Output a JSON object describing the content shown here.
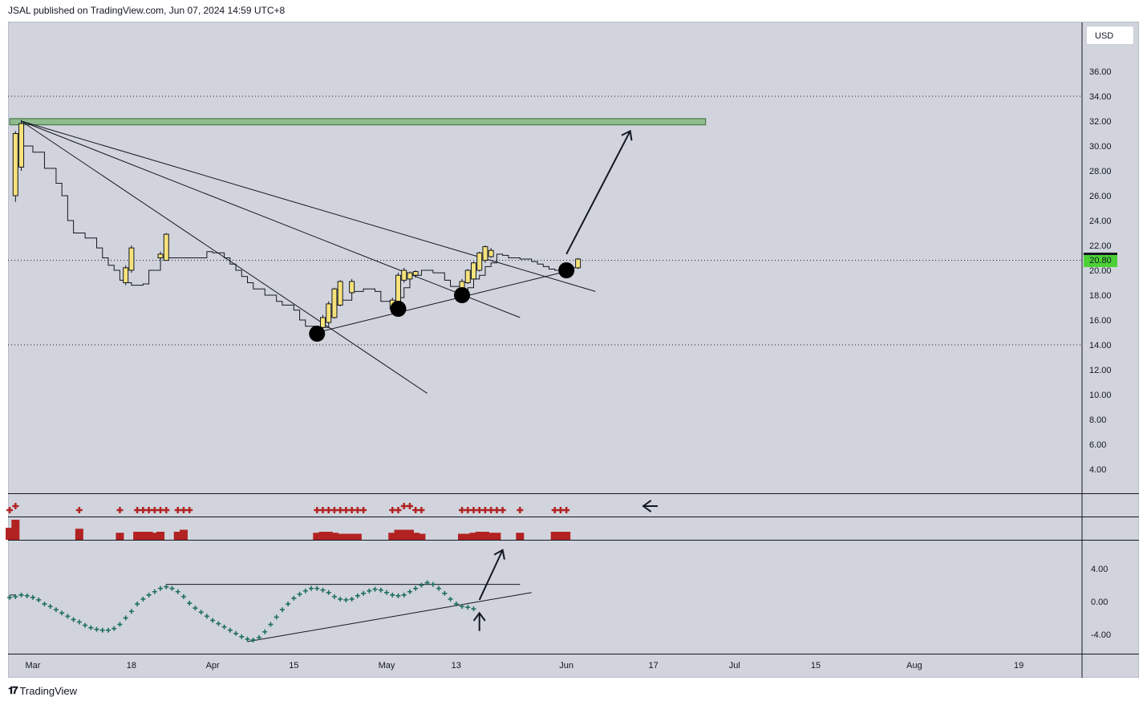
{
  "header": {
    "published_text": "JSAL published on TradingView.com, Jun 07, 2024 14:59 UTC+8"
  },
  "currency": "USD",
  "last_price": "20.80",
  "footer": {
    "brand": "TradingView",
    "logo_icon": "tradingview-logo-icon"
  },
  "colors": {
    "background": "#d1d4dc",
    "candle_fill": "#f5e27a",
    "zone_fill": "#8fbc8f",
    "marker_red": "#b22222",
    "marker_green": "#1f6f5c",
    "price_tag": "#4cd137"
  },
  "chart_data": [
    {
      "type": "candlestick",
      "panel": "price",
      "y_ticks": [
        "36.00",
        "34.00",
        "32.00",
        "30.00",
        "28.00",
        "26.00",
        "24.00",
        "22.00",
        "20.00",
        "18.00",
        "16.00",
        "14.00",
        "12.00",
        "10.00",
        "8.00",
        "6.00",
        "4.00"
      ],
      "ylim": [
        2,
        38
      ],
      "x_ticks": [
        {
          "label": "Mar",
          "day": 0
        },
        {
          "label": "18",
          "day": 17
        },
        {
          "label": "Apr",
          "day": 31
        },
        {
          "label": "15",
          "day": 45
        },
        {
          "label": "May",
          "day": 61
        },
        {
          "label": "13",
          "day": 73
        },
        {
          "label": "Jun",
          "day": 92
        },
        {
          "label": "17",
          "day": 107
        },
        {
          "label": "Jul",
          "day": 121
        },
        {
          "label": "15",
          "day": 135
        },
        {
          "label": "Aug",
          "day": 152
        },
        {
          "label": "19",
          "day": 170
        }
      ],
      "xlim": [
        -4,
        178
      ],
      "step_close": [
        [
          -3,
          31
        ],
        [
          -2,
          30
        ],
        [
          0,
          29.5
        ],
        [
          2,
          28.2
        ],
        [
          4,
          27
        ],
        [
          5,
          26
        ],
        [
          6,
          24
        ],
        [
          7,
          23
        ],
        [
          9,
          22.6
        ],
        [
          11,
          21.8
        ],
        [
          12,
          21
        ],
        [
          13,
          20.4
        ],
        [
          14,
          20
        ],
        [
          15,
          19.2
        ],
        [
          16,
          19
        ],
        [
          17,
          18.8
        ],
        [
          19,
          18.9
        ],
        [
          20,
          20
        ],
        [
          22,
          21
        ],
        [
          25,
          21
        ],
        [
          28,
          21
        ],
        [
          30,
          21.5
        ],
        [
          31,
          21.4
        ],
        [
          33,
          21
        ],
        [
          34,
          20.5
        ],
        [
          35,
          20
        ],
        [
          36,
          19.5
        ],
        [
          37,
          19
        ],
        [
          38,
          18.5
        ],
        [
          40,
          18
        ],
        [
          42,
          17.5
        ],
        [
          43,
          17.2
        ],
        [
          45,
          16.8
        ],
        [
          46,
          16
        ],
        [
          47,
          15.5
        ],
        [
          49,
          15.2
        ],
        [
          50,
          15.4
        ],
        [
          51,
          16.3
        ],
        [
          52,
          17.2
        ],
        [
          53,
          17.6
        ],
        [
          55,
          18.3
        ],
        [
          57,
          18.5
        ],
        [
          59,
          18.3
        ],
        [
          60,
          17.5
        ],
        [
          62,
          17
        ],
        [
          63,
          17.8
        ],
        [
          64,
          18.6
        ],
        [
          65,
          19.6
        ],
        [
          67,
          20
        ],
        [
          69,
          19.8
        ],
        [
          71,
          19.2
        ],
        [
          72,
          18.7
        ],
        [
          74,
          18.2
        ],
        [
          75,
          18.6
        ],
        [
          76,
          19.3
        ],
        [
          77,
          19.6
        ],
        [
          78,
          20.3
        ],
        [
          79,
          20.6
        ],
        [
          80,
          21.3
        ],
        [
          81,
          21.2
        ],
        [
          82,
          21
        ],
        [
          84,
          20.9
        ],
        [
          86,
          20.7
        ],
        [
          87,
          20.5
        ],
        [
          88,
          20.3
        ],
        [
          89,
          20.1
        ],
        [
          90,
          20
        ],
        [
          92,
          20
        ],
        [
          93,
          20.2
        ],
        [
          94,
          20.8
        ]
      ],
      "candles": [
        {
          "day": -3,
          "open": 31,
          "high": 31.2,
          "low": 25.5,
          "close": 26
        },
        {
          "day": -2,
          "open": 28.3,
          "high": 32.1,
          "low": 28,
          "close": 31.8
        },
        {
          "day": 16,
          "open": 19,
          "high": 20.4,
          "low": 18.8,
          "close": 20.2
        },
        {
          "day": 17,
          "open": 20,
          "high": 22,
          "low": 19.8,
          "close": 21.8
        },
        {
          "day": 22,
          "open": 21,
          "high": 21.5,
          "low": 20.7,
          "close": 21.3
        },
        {
          "day": 23,
          "open": 20.8,
          "high": 23,
          "low": 20.8,
          "close": 22.9
        },
        {
          "day": 50,
          "open": 15.4,
          "high": 16.4,
          "low": 15.2,
          "close": 16.2
        },
        {
          "day": 51,
          "open": 15.8,
          "high": 17.5,
          "low": 15.7,
          "close": 17.3
        },
        {
          "day": 52,
          "open": 16.2,
          "high": 18.6,
          "low": 16.1,
          "close": 18.5
        },
        {
          "day": 53,
          "open": 17.2,
          "high": 19.2,
          "low": 17.1,
          "close": 19.1
        },
        {
          "day": 55,
          "open": 18.2,
          "high": 19.3,
          "low": 18.1,
          "close": 19.1
        },
        {
          "day": 62,
          "open": 16.9,
          "high": 17.8,
          "low": 16.8,
          "close": 17.6
        },
        {
          "day": 63,
          "open": 17.5,
          "high": 19.8,
          "low": 17.4,
          "close": 19.6
        },
        {
          "day": 64,
          "open": 19.2,
          "high": 20.2,
          "low": 19,
          "close": 20
        },
        {
          "day": 65,
          "open": 19.3,
          "high": 19.9,
          "low": 19.2,
          "close": 19.8
        },
        {
          "day": 66,
          "open": 19.6,
          "high": 20,
          "low": 19.4,
          "close": 19.9
        },
        {
          "day": 74,
          "open": 18.4,
          "high": 19.3,
          "low": 18.2,
          "close": 19.1
        },
        {
          "day": 75,
          "open": 19,
          "high": 20.1,
          "low": 18.9,
          "close": 20
        },
        {
          "day": 76,
          "open": 19.3,
          "high": 20.7,
          "low": 19.2,
          "close": 20.6
        },
        {
          "day": 77,
          "open": 20,
          "high": 21.5,
          "low": 19.9,
          "close": 21.4
        },
        {
          "day": 78,
          "open": 20.8,
          "high": 22,
          "low": 20.6,
          "close": 21.9
        },
        {
          "day": 79,
          "open": 21.1,
          "high": 21.8,
          "low": 21,
          "close": 21.6
        },
        {
          "day": 94,
          "open": 20.2,
          "high": 21,
          "low": 20.1,
          "close": 20.9
        }
      ],
      "resistance_zone": {
        "day_start": -4,
        "day_end": 116,
        "low": 31.7,
        "high": 32.2
      },
      "horizontal_dotted_levels": [
        34.0,
        20.8,
        14.0
      ],
      "trend_lines": [
        {
          "from": [
            -2,
            32
          ],
          "to": [
            97,
            18.3
          ]
        },
        {
          "from": [
            -2,
            32
          ],
          "to": [
            84,
            16.2
          ]
        },
        {
          "from": [
            -2,
            32
          ],
          "to": [
            68,
            10.1
          ]
        },
        {
          "from": [
            49,
            15
          ],
          "to": [
            91,
            19.8
          ]
        }
      ],
      "pivot_markers": [
        {
          "day": 49,
          "price": 14.9
        },
        {
          "day": 63,
          "price": 16.9
        },
        {
          "day": 74,
          "price": 18
        },
        {
          "day": 92,
          "price": 20
        }
      ],
      "arrow": {
        "from": [
          92,
          21.3
        ],
        "to": [
          103,
          31.2
        ]
      }
    },
    {
      "type": "bar",
      "panel": "signal-markers",
      "marker_days": [
        -4,
        -3,
        8,
        15,
        18,
        19,
        20,
        21,
        22,
        23,
        25,
        26,
        27,
        49,
        50,
        51,
        52,
        53,
        54,
        55,
        56,
        57,
        62,
        63,
        64,
        65,
        66,
        67,
        74,
        75,
        76,
        77,
        78,
        79,
        80,
        81,
        84,
        90,
        91,
        92
      ],
      "raised_days": [
        -3,
        64,
        65
      ]
    },
    {
      "type": "bar",
      "panel": "histogram",
      "bars": [
        {
          "day": -4,
          "value": 0.6
        },
        {
          "day": -3,
          "value": 1
        },
        {
          "day": 8,
          "value": 0.55
        },
        {
          "day": 15,
          "value": 0.35
        },
        {
          "day": 18,
          "value": 0.4
        },
        {
          "day": 19,
          "value": 0.4
        },
        {
          "day": 20,
          "value": 0.4
        },
        {
          "day": 21,
          "value": 0.35
        },
        {
          "day": 22,
          "value": 0.4
        },
        {
          "day": 25,
          "value": 0.4
        },
        {
          "day": 26,
          "value": 0.5
        },
        {
          "day": 49,
          "value": 0.35
        },
        {
          "day": 50,
          "value": 0.4
        },
        {
          "day": 51,
          "value": 0.4
        },
        {
          "day": 52,
          "value": 0.35
        },
        {
          "day": 53,
          "value": 0.3
        },
        {
          "day": 54,
          "value": 0.3
        },
        {
          "day": 55,
          "value": 0.3
        },
        {
          "day": 56,
          "value": 0.3
        },
        {
          "day": 62,
          "value": 0.35
        },
        {
          "day": 63,
          "value": 0.5
        },
        {
          "day": 64,
          "value": 0.5
        },
        {
          "day": 65,
          "value": 0.5
        },
        {
          "day": 66,
          "value": 0.35
        },
        {
          "day": 67,
          "value": 0.3
        },
        {
          "day": 74,
          "value": 0.3
        },
        {
          "day": 75,
          "value": 0.3
        },
        {
          "day": 76,
          "value": 0.35
        },
        {
          "day": 77,
          "value": 0.4
        },
        {
          "day": 78,
          "value": 0.4
        },
        {
          "day": 79,
          "value": 0.35
        },
        {
          "day": 80,
          "value": 0.35
        },
        {
          "day": 84,
          "value": 0.35
        },
        {
          "day": 90,
          "value": 0.4
        },
        {
          "day": 91,
          "value": 0.4
        },
        {
          "day": 92,
          "value": 0.4
        }
      ]
    },
    {
      "type": "scatter",
      "panel": "oscillator",
      "y_ticks": [
        "4.00",
        "0.00",
        "-4.00"
      ],
      "ylim": [
        -6,
        7
      ],
      "points": [
        [
          -4,
          0.5
        ],
        [
          -3,
          0.6
        ],
        [
          -2,
          0.8
        ],
        [
          -1,
          0.7
        ],
        [
          0,
          0.5
        ],
        [
          1,
          0.2
        ],
        [
          2,
          -0.3
        ],
        [
          3,
          -0.6
        ],
        [
          4,
          -1
        ],
        [
          5,
          -1.4
        ],
        [
          6,
          -1.8
        ],
        [
          7,
          -2.2
        ],
        [
          8,
          -2.5
        ],
        [
          9,
          -2.9
        ],
        [
          10,
          -3.2
        ],
        [
          11,
          -3.4
        ],
        [
          12,
          -3.5
        ],
        [
          13,
          -3.5
        ],
        [
          14,
          -3.3
        ],
        [
          15,
          -2.8
        ],
        [
          16,
          -2
        ],
        [
          17,
          -1.2
        ],
        [
          18,
          -0.3
        ],
        [
          19,
          0.3
        ],
        [
          20,
          0.8
        ],
        [
          21,
          1.2
        ],
        [
          22,
          1.6
        ],
        [
          23,
          1.8
        ],
        [
          24,
          1.6
        ],
        [
          25,
          1.2
        ],
        [
          26,
          0.6
        ],
        [
          27,
          -0.2
        ],
        [
          28,
          -0.8
        ],
        [
          29,
          -1.3
        ],
        [
          30,
          -1.8
        ],
        [
          31,
          -2.3
        ],
        [
          32,
          -2.7
        ],
        [
          33,
          -3.1
        ],
        [
          34,
          -3.5
        ],
        [
          35,
          -3.9
        ],
        [
          36,
          -4.3
        ],
        [
          37,
          -4.6
        ],
        [
          38,
          -4.7
        ],
        [
          39,
          -4.4
        ],
        [
          40,
          -3.7
        ],
        [
          41,
          -2.8
        ],
        [
          42,
          -1.9
        ],
        [
          43,
          -1
        ],
        [
          44,
          -0.3
        ],
        [
          45,
          0.4
        ],
        [
          46,
          0.9
        ],
        [
          47,
          1.3
        ],
        [
          48,
          1.6
        ],
        [
          49,
          1.6
        ],
        [
          50,
          1.4
        ],
        [
          51,
          1.1
        ],
        [
          52,
          0.6
        ],
        [
          53,
          0.3
        ],
        [
          54,
          0.2
        ],
        [
          55,
          0.3
        ],
        [
          56,
          0.7
        ],
        [
          57,
          1
        ],
        [
          58,
          1.3
        ],
        [
          59,
          1.5
        ],
        [
          60,
          1.4
        ],
        [
          61,
          1.1
        ],
        [
          62,
          0.8
        ],
        [
          63,
          0.7
        ],
        [
          64,
          0.8
        ],
        [
          65,
          1.2
        ],
        [
          66,
          1.6
        ],
        [
          67,
          2
        ],
        [
          68,
          2.3
        ],
        [
          69,
          2.1
        ],
        [
          70,
          1.6
        ],
        [
          71,
          1
        ],
        [
          72,
          0.3
        ],
        [
          73,
          -0.3
        ],
        [
          74,
          -0.6
        ],
        [
          75,
          -0.7
        ],
        [
          76,
          -0.9
        ]
      ],
      "lines": [
        {
          "from": [
            -4,
            0.8
          ],
          "to": [
            -3,
            0.8
          ]
        },
        {
          "from": [
            23,
            2.1
          ],
          "to": [
            84,
            2.1
          ]
        },
        {
          "from": [
            37,
            -4.9
          ],
          "to": [
            86,
            1.1
          ]
        }
      ],
      "arrow_up": {
        "x_day": 77,
        "y_from": -3.6,
        "y_to": -1.4
      },
      "arrow_diag": {
        "from": [
          77,
          0.2
        ],
        "to": [
          81,
          6.3
        ]
      }
    }
  ]
}
